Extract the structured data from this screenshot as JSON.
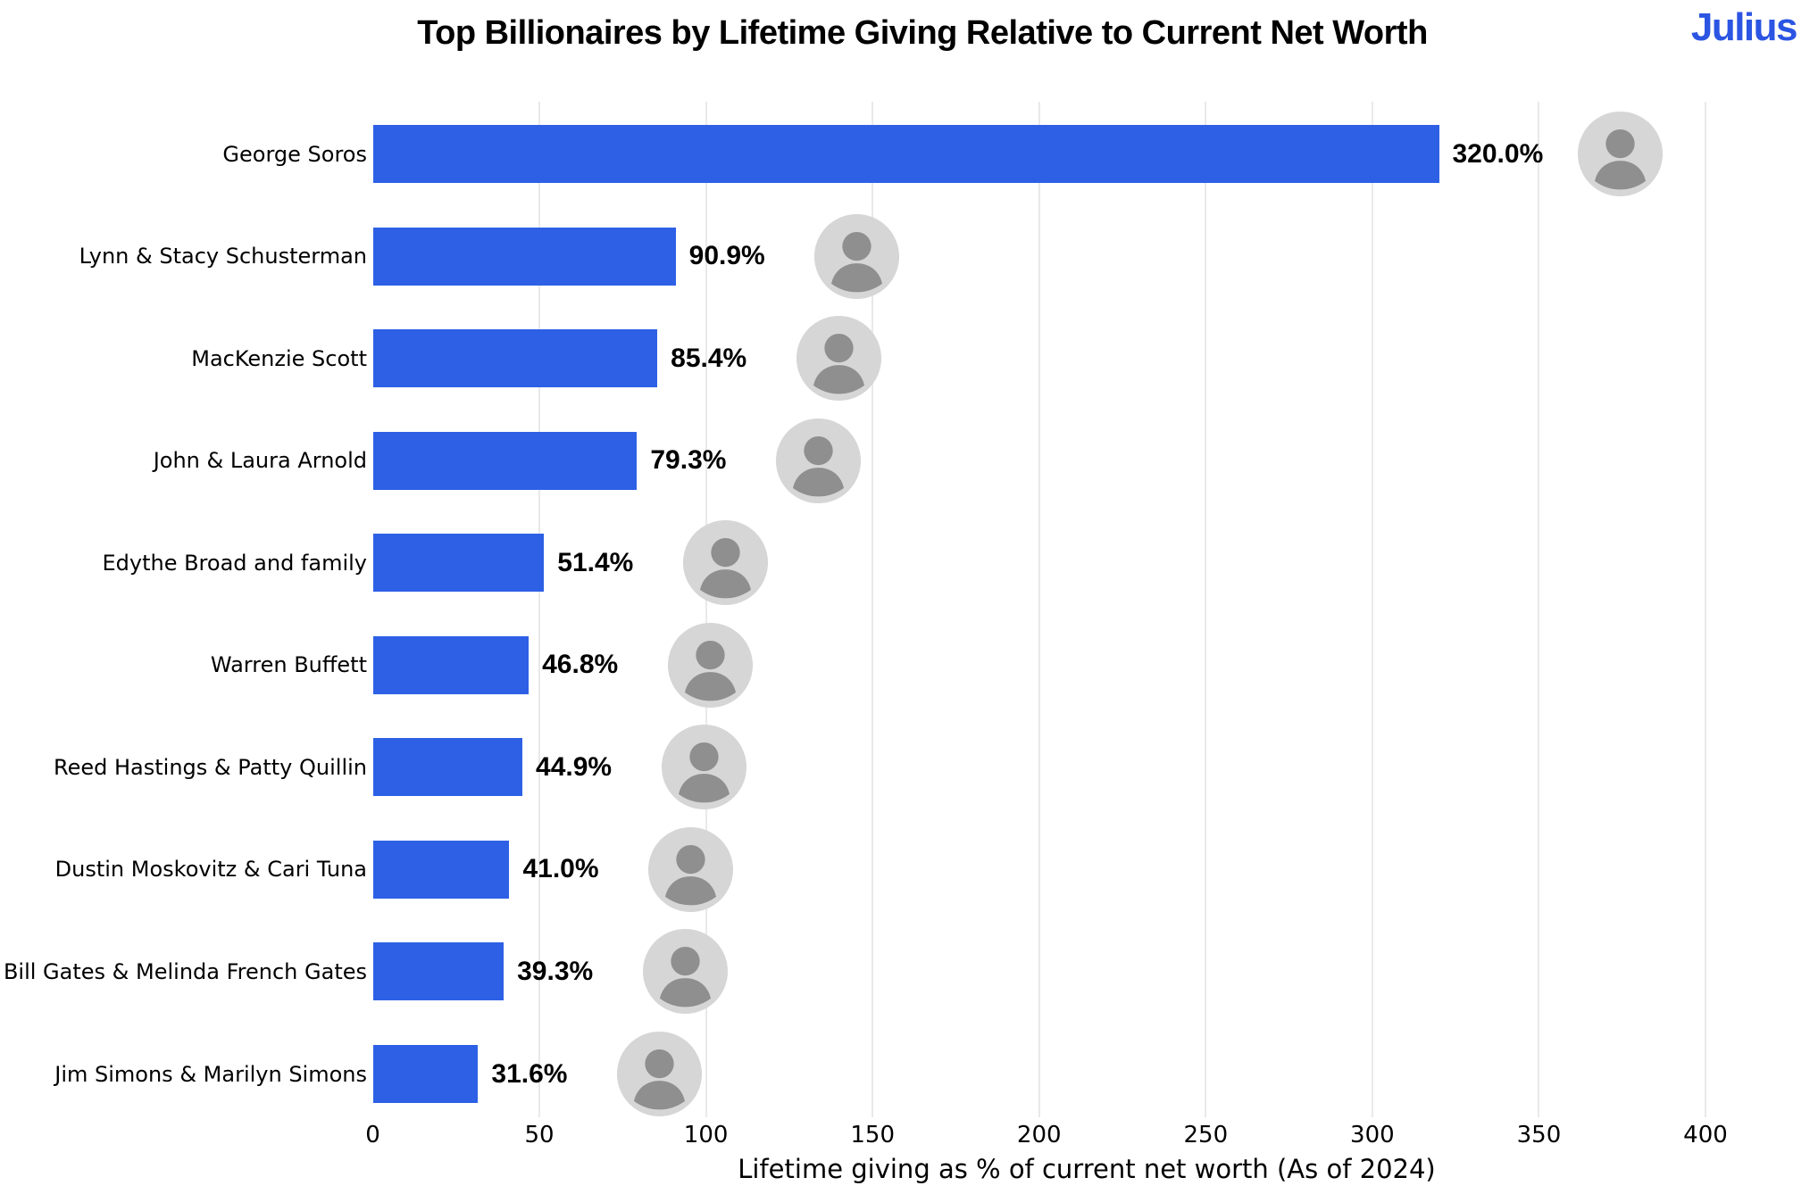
{
  "brand": {
    "logo_text": "Julius",
    "logo_color": "#2b55e2"
  },
  "chart_data": {
    "type": "bar",
    "orientation": "horizontal",
    "title": "Top Billionaires by Lifetime Giving Relative to Current Net Worth",
    "xlabel": "Lifetime giving as % of current net worth (As of 2024)",
    "xlim": [
      0,
      400
    ],
    "xticks": [
      "0",
      "50",
      "100",
      "150",
      "200",
      "250",
      "300",
      "350",
      "400"
    ],
    "grid": "vertical-light-gray",
    "legend": false,
    "bar_color": "#2d60e5",
    "categories": [
      "George Soros",
      "Lynn & Stacy Schusterman",
      "MacKenzie Scott",
      "John & Laura Arnold",
      "Edythe Broad and family",
      "Warren Buffett",
      "Reed Hastings & Patty Quillin",
      "Dustin Moskovitz & Cari Tuna",
      "Bill Gates & Melinda French Gates",
      "Jim Simons & Marilyn Simons"
    ],
    "values": [
      320.0,
      90.9,
      85.4,
      79.3,
      51.4,
      46.8,
      44.9,
      41.0,
      39.3,
      31.6
    ],
    "bar_labels": [
      "320.0%",
      "90.9%",
      "85.4%",
      "79.3%",
      "51.4%",
      "46.8%",
      "44.9%",
      "41.0%",
      "39.3%",
      "31.6%"
    ],
    "portraits": [
      "george-soros",
      "lynn-stacy-schusterman",
      "mackenzie-scott",
      "john-laura-arnold",
      "edythe-broad",
      "warren-buffett",
      "reed-hastings-patty-quillin",
      "dustin-moskovitz-cari-tuna",
      "bill-gates-melinda-french-gates",
      "jim-simons-marilyn-simons"
    ]
  }
}
